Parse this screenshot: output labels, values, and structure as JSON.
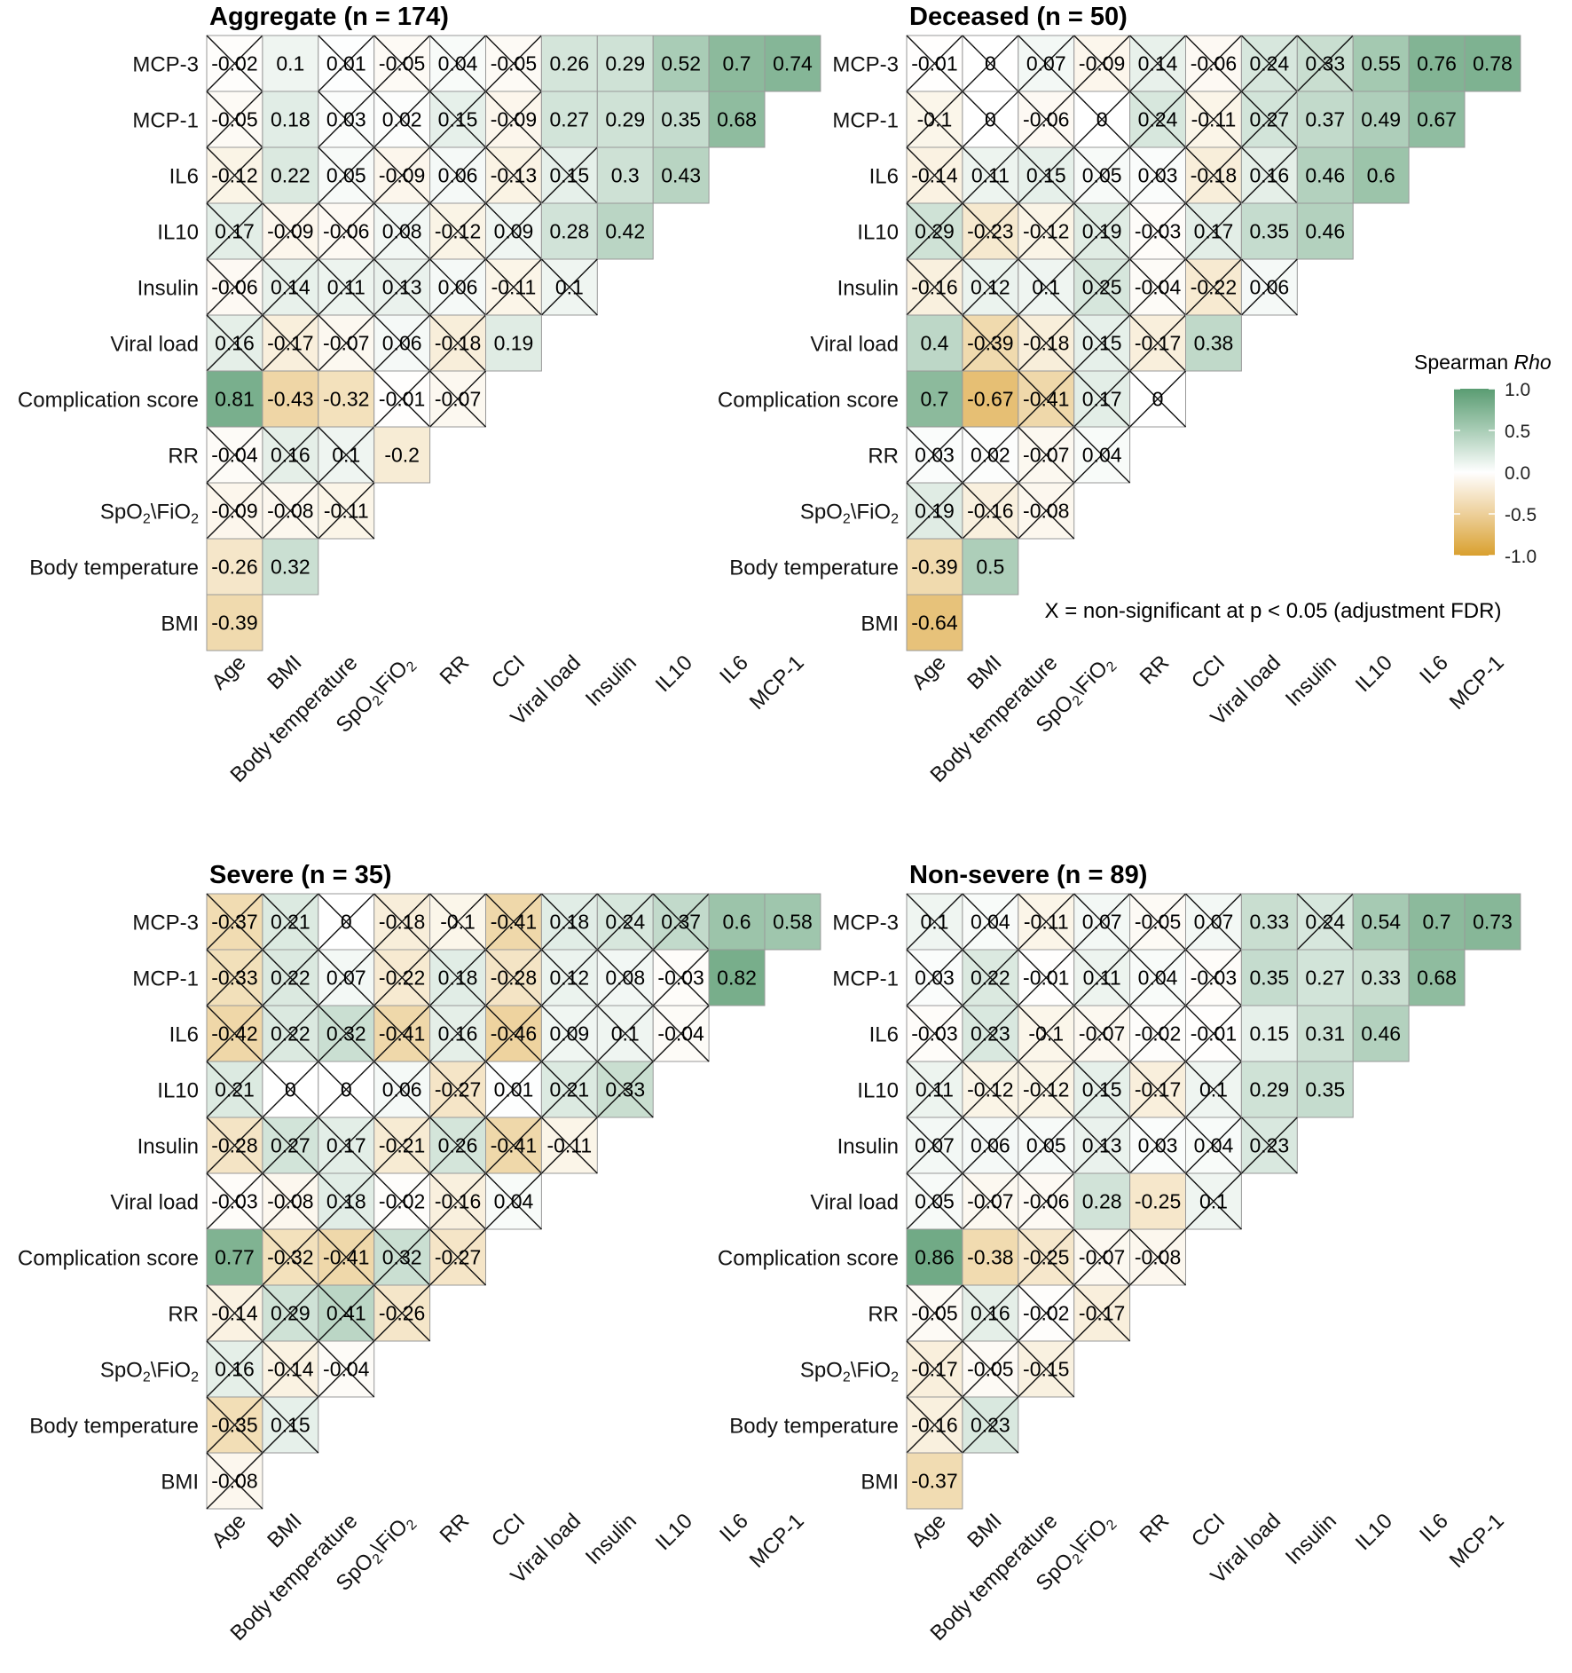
{
  "chart_data": [
    {
      "type": "heatmap",
      "title": "Aggregate (n = 174)",
      "rows": [
        "MCP-3",
        "MCP-1",
        "IL6",
        "IL10",
        "Insulin",
        "Viral load",
        "Complication score",
        "RR",
        "SpO2\\FiO2",
        "Body temperature",
        "BMI"
      ],
      "columns": [
        "Age",
        "BMI",
        "Body temperature",
        "SpO2\\FiO2",
        "RR",
        "CCI",
        "Viral load",
        "Insulin",
        "IL10",
        "IL6",
        "MCP-1"
      ],
      "values": [
        [
          -0.02,
          0.1,
          0.01,
          -0.05,
          0.04,
          -0.05,
          0.26,
          0.29,
          0.52,
          0.7,
          0.74
        ],
        [
          -0.05,
          0.18,
          0.03,
          0.02,
          0.15,
          -0.09,
          0.27,
          0.29,
          0.35,
          0.68
        ],
        [
          -0.12,
          0.22,
          0.05,
          -0.09,
          0.06,
          -0.13,
          0.15,
          0.3,
          0.43
        ],
        [
          0.17,
          -0.09,
          -0.06,
          0.08,
          -0.12,
          0.09,
          0.28,
          0.42
        ],
        [
          -0.06,
          0.14,
          0.11,
          0.13,
          0.06,
          -0.11,
          0.1
        ],
        [
          0.16,
          -0.17,
          -0.07,
          0.06,
          -0.18,
          0.19
        ],
        [
          0.81,
          -0.43,
          -0.32,
          -0.01,
          -0.07
        ],
        [
          -0.04,
          0.16,
          0.1,
          -0.2
        ],
        [
          -0.09,
          -0.08,
          -0.11
        ],
        [
          -0.26,
          0.32
        ],
        [
          -0.39
        ]
      ],
      "labels": [
        [
          "-0.02",
          "0.1",
          "0.01",
          "-0.05",
          "0.04",
          "-0.05",
          "0.26",
          "0.29",
          "0.52",
          "0.7",
          "0.74"
        ],
        [
          "-0.05",
          "0.18",
          "0.03",
          "0.02",
          "0.15",
          "-0.09",
          "0.27",
          "0.29",
          "0.35",
          "0.68"
        ],
        [
          "-0.12",
          "0.22",
          "0.05",
          "-0.09",
          "0.06",
          "-0.13",
          "0.15",
          "0.3",
          "0.43"
        ],
        [
          "0.17",
          "-0.09",
          "-0.06",
          "0.08",
          "-0.12",
          "0.09",
          "0.28",
          "0.42"
        ],
        [
          "-0.06",
          "0.14",
          "0.11",
          "0.13",
          "0.06",
          "-0.11",
          "0.1"
        ],
        [
          "0.16",
          "-0.17",
          "-0.07",
          "0.06",
          "-0.18",
          "0.19"
        ],
        [
          "0.81",
          "-0.43",
          "-0.32",
          "-0.01",
          "-0.07"
        ],
        [
          "-0.04",
          "0.16",
          "0.1",
          "-0.2"
        ],
        [
          "-0.09",
          "-0.08",
          "-0.11"
        ],
        [
          "-0.26",
          "0.32"
        ],
        [
          "-0.39"
        ]
      ],
      "nonsignificant": [
        [
          1,
          0,
          1,
          1,
          1,
          1,
          0,
          0,
          0,
          0,
          0
        ],
        [
          1,
          0,
          1,
          1,
          1,
          1,
          0,
          0,
          0,
          0
        ],
        [
          1,
          0,
          1,
          1,
          1,
          1,
          1,
          0,
          0
        ],
        [
          1,
          1,
          1,
          1,
          1,
          1,
          0,
          0
        ],
        [
          1,
          1,
          1,
          1,
          1,
          1,
          1
        ],
        [
          1,
          1,
          1,
          1,
          1,
          0
        ],
        [
          0,
          0,
          0,
          1,
          1
        ],
        [
          1,
          1,
          1,
          0
        ],
        [
          1,
          1,
          1
        ],
        [
          0,
          0
        ],
        [
          0
        ]
      ]
    },
    {
      "type": "heatmap",
      "title": "Deceased (n = 50)",
      "rows": [
        "MCP-3",
        "MCP-1",
        "IL6",
        "IL10",
        "Insulin",
        "Viral load",
        "Complication score",
        "RR",
        "SpO2\\FiO2",
        "Body temperature",
        "BMI"
      ],
      "columns": [
        "Age",
        "BMI",
        "Body temperature",
        "SpO2\\FiO2",
        "RR",
        "CCI",
        "Viral load",
        "Insulin",
        "IL10",
        "IL6",
        "MCP-1"
      ],
      "values": [
        [
          -0.01,
          0,
          0.07,
          -0.09,
          0.14,
          -0.06,
          0.24,
          0.33,
          0.55,
          0.76,
          0.78
        ],
        [
          -0.1,
          0,
          -0.06,
          0,
          0.24,
          -0.11,
          0.27,
          0.37,
          0.49,
          0.67
        ],
        [
          -0.14,
          0.11,
          0.15,
          0.05,
          0.03,
          -0.18,
          0.16,
          0.46,
          0.6
        ],
        [
          0.29,
          -0.23,
          -0.12,
          0.19,
          -0.03,
          0.17,
          0.35,
          0.46
        ],
        [
          -0.16,
          0.12,
          0.1,
          0.25,
          -0.04,
          -0.22,
          0.06
        ],
        [
          0.4,
          -0.39,
          -0.18,
          0.15,
          -0.17,
          0.38
        ],
        [
          0.7,
          -0.67,
          -0.41,
          0.17,
          0
        ],
        [
          0.03,
          0.02,
          -0.07,
          0.04
        ],
        [
          0.19,
          -0.16,
          -0.08
        ],
        [
          -0.39,
          0.5
        ],
        [
          -0.64
        ]
      ],
      "labels": [
        [
          "-0.01",
          "0",
          "0.07",
          "-0.09",
          "0.14",
          "-0.06",
          "0.24",
          "0.33",
          "0.55",
          "0.76",
          "0.78"
        ],
        [
          "-0.1",
          "0",
          "-0.06",
          "0",
          "0.24",
          "-0.11",
          "0.27",
          "0.37",
          "0.49",
          "0.67"
        ],
        [
          "-0.14",
          "0.11",
          "0.15",
          "0.05",
          "0.03",
          "-0.18",
          "0.16",
          "0.46",
          "0.6"
        ],
        [
          "0.29",
          "-0.23",
          "-0.12",
          "0.19",
          "-0.03",
          "0.17",
          "0.35",
          "0.46"
        ],
        [
          "-0.16",
          "0.12",
          "0.1",
          "0.25",
          "-0.04",
          "-0.22",
          "0.06"
        ],
        [
          "0.4",
          "-0.39",
          "-0.18",
          "0.15",
          "-0.17",
          "0.38"
        ],
        [
          "0.7",
          "-0.67",
          "-0.41",
          "0.17",
          "0"
        ],
        [
          "0.03",
          "0.02",
          "-0.07",
          "0.04"
        ],
        [
          "0.19",
          "-0.16",
          "-0.08"
        ],
        [
          "-0.39",
          "0.5"
        ],
        [
          "-0.64"
        ]
      ],
      "nonsignificant": [
        [
          1,
          1,
          1,
          1,
          1,
          1,
          1,
          1,
          0,
          0,
          0
        ],
        [
          1,
          1,
          1,
          1,
          1,
          1,
          1,
          0,
          0,
          0
        ],
        [
          1,
          1,
          1,
          1,
          1,
          1,
          1,
          0,
          0
        ],
        [
          1,
          1,
          1,
          1,
          1,
          1,
          0,
          0
        ],
        [
          1,
          1,
          1,
          1,
          1,
          1,
          1
        ],
        [
          0,
          1,
          1,
          1,
          1,
          0
        ],
        [
          0,
          0,
          1,
          1,
          1
        ],
        [
          1,
          1,
          1,
          1
        ],
        [
          1,
          1,
          1
        ],
        [
          0,
          0
        ],
        [
          0
        ]
      ]
    },
    {
      "type": "heatmap",
      "title": "Severe (n = 35)",
      "rows": [
        "MCP-3",
        "MCP-1",
        "IL6",
        "IL10",
        "Insulin",
        "Viral load",
        "Complication score",
        "RR",
        "SpO2\\FiO2",
        "Body temperature",
        "BMI"
      ],
      "columns": [
        "Age",
        "BMI",
        "Body temperature",
        "SpO2\\FiO2",
        "RR",
        "CCI",
        "Viral load",
        "Insulin",
        "IL10",
        "IL6",
        "MCP-1"
      ],
      "values": [
        [
          -0.37,
          0.21,
          0,
          -0.18,
          -0.1,
          -0.41,
          0.18,
          0.24,
          0.37,
          0.6,
          0.58
        ],
        [
          -0.33,
          0.22,
          0.07,
          -0.22,
          0.18,
          -0.28,
          0.12,
          0.08,
          -0.03,
          0.82
        ],
        [
          -0.42,
          0.22,
          0.32,
          -0.41,
          0.16,
          -0.46,
          0.09,
          0.1,
          -0.04
        ],
        [
          0.21,
          0,
          0,
          0.06,
          -0.27,
          0.01,
          0.21,
          0.33
        ],
        [
          -0.28,
          0.27,
          0.17,
          -0.21,
          0.26,
          -0.41,
          -0.11
        ],
        [
          -0.03,
          -0.08,
          0.18,
          -0.02,
          -0.16,
          0.04
        ],
        [
          0.77,
          -0.32,
          -0.41,
          0.32,
          -0.27
        ],
        [
          -0.14,
          0.29,
          0.41,
          -0.26
        ],
        [
          0.16,
          -0.14,
          -0.04
        ],
        [
          -0.35,
          0.15
        ],
        [
          -0.08
        ]
      ],
      "labels": [
        [
          "-0.37",
          "0.21",
          "0",
          "-0.18",
          "-0.1",
          "-0.41",
          "0.18",
          "0.24",
          "0.37",
          "0.6",
          "0.58"
        ],
        [
          "-0.33",
          "0.22",
          "0.07",
          "-0.22",
          "0.18",
          "-0.28",
          "0.12",
          "0.08",
          "-0.03",
          "0.82"
        ],
        [
          "-0.42",
          "0.22",
          "0.32",
          "-0.41",
          "0.16",
          "-0.46",
          "0.09",
          "0.1",
          "-0.04"
        ],
        [
          "0.21",
          "0",
          "0",
          "0.06",
          "-0.27",
          "0.01",
          "0.21",
          "0.33"
        ],
        [
          "-0.28",
          "0.27",
          "0.17",
          "-0.21",
          "0.26",
          "-0.41",
          "-0.11"
        ],
        [
          "-0.03",
          "-0.08",
          "0.18",
          "-0.02",
          "-0.16",
          "0.04"
        ],
        [
          "0.77",
          "-0.32",
          "-0.41",
          "0.32",
          "-0.27"
        ],
        [
          "-0.14",
          "0.29",
          "0.41",
          "-0.26"
        ],
        [
          "0.16",
          "-0.14",
          "-0.04"
        ],
        [
          "-0.35",
          "0.15"
        ],
        [
          "-0.08"
        ]
      ],
      "nonsignificant": [
        [
          1,
          1,
          1,
          1,
          1,
          1,
          1,
          1,
          1,
          0,
          0
        ],
        [
          1,
          1,
          1,
          1,
          1,
          1,
          1,
          1,
          1,
          0
        ],
        [
          1,
          1,
          1,
          1,
          1,
          1,
          1,
          1,
          1
        ],
        [
          1,
          1,
          1,
          1,
          1,
          1,
          1,
          1
        ],
        [
          1,
          1,
          1,
          1,
          1,
          1,
          1
        ],
        [
          1,
          1,
          1,
          1,
          1,
          1
        ],
        [
          0,
          1,
          1,
          1,
          1
        ],
        [
          1,
          1,
          1,
          1
        ],
        [
          1,
          1,
          1
        ],
        [
          1,
          1
        ],
        [
          1
        ]
      ]
    },
    {
      "type": "heatmap",
      "title": "Non-severe (n = 89)",
      "rows": [
        "MCP-3",
        "MCP-1",
        "IL6",
        "IL10",
        "Insulin",
        "Viral load",
        "Complication score",
        "RR",
        "SpO2\\FiO2",
        "Body temperature",
        "BMI"
      ],
      "columns": [
        "Age",
        "BMI",
        "Body temperature",
        "SpO2\\FiO2",
        "RR",
        "CCI",
        "Viral load",
        "Insulin",
        "IL10",
        "IL6",
        "MCP-1"
      ],
      "values": [
        [
          0.1,
          0.04,
          -0.11,
          0.07,
          -0.05,
          0.07,
          0.33,
          0.24,
          0.54,
          0.7,
          0.73
        ],
        [
          0.03,
          0.22,
          -0.01,
          0.11,
          0.04,
          -0.03,
          0.35,
          0.27,
          0.33,
          0.68
        ],
        [
          -0.03,
          0.23,
          -0.1,
          -0.07,
          -0.02,
          -0.01,
          0.15,
          0.31,
          0.46
        ],
        [
          0.11,
          -0.12,
          -0.12,
          0.15,
          -0.17,
          0.1,
          0.29,
          0.35
        ],
        [
          0.07,
          0.06,
          0.05,
          0.13,
          0.03,
          0.04,
          0.23
        ],
        [
          0.05,
          -0.07,
          -0.06,
          0.28,
          -0.25,
          0.1
        ],
        [
          0.86,
          -0.38,
          -0.25,
          -0.07,
          -0.08
        ],
        [
          -0.05,
          0.16,
          -0.02,
          -0.17
        ],
        [
          -0.17,
          -0.05,
          -0.15
        ],
        [
          -0.16,
          0.23
        ],
        [
          -0.37
        ]
      ],
      "labels": [
        [
          "0.1",
          "0.04",
          "-0.11",
          "0.07",
          "-0.05",
          "0.07",
          "0.33",
          "0.24",
          "0.54",
          "0.7",
          "0.73"
        ],
        [
          "0.03",
          "0.22",
          "-0.01",
          "0.11",
          "0.04",
          "-0.03",
          "0.35",
          "0.27",
          "0.33",
          "0.68"
        ],
        [
          "-0.03",
          "0.23",
          "-0.1",
          "-0.07",
          "-0.02",
          "-0.01",
          "0.15",
          "0.31",
          "0.46"
        ],
        [
          "0.11",
          "-0.12",
          "-0.12",
          "0.15",
          "-0.17",
          "0.1",
          "0.29",
          "0.35"
        ],
        [
          "0.07",
          "0.06",
          "0.05",
          "0.13",
          "0.03",
          "0.04",
          "0.23"
        ],
        [
          "0.05",
          "-0.07",
          "-0.06",
          "0.28",
          "-0.25",
          "0.1"
        ],
        [
          "0.86",
          "-0.38",
          "-0.25",
          "-0.07",
          "-0.08"
        ],
        [
          "-0.05",
          "0.16",
          "-0.02",
          "-0.17"
        ],
        [
          "-0.17",
          "-0.05",
          "-0.15"
        ],
        [
          "-0.16",
          "0.23"
        ],
        [
          "-0.37"
        ]
      ],
      "nonsignificant": [
        [
          1,
          1,
          1,
          1,
          1,
          1,
          0,
          1,
          0,
          0,
          0
        ],
        [
          1,
          1,
          1,
          1,
          1,
          1,
          0,
          0,
          0,
          0
        ],
        [
          1,
          1,
          1,
          1,
          1,
          1,
          0,
          0,
          0
        ],
        [
          1,
          1,
          1,
          1,
          1,
          1,
          0,
          0
        ],
        [
          1,
          1,
          1,
          1,
          1,
          1,
          1
        ],
        [
          1,
          1,
          1,
          0,
          0,
          1
        ],
        [
          0,
          0,
          1,
          1,
          1
        ],
        [
          1,
          1,
          1,
          1
        ],
        [
          1,
          1,
          1
        ],
        [
          1,
          1
        ],
        [
          0
        ]
      ]
    }
  ],
  "legend": {
    "title_prefix": "Spearman",
    "title_italic": "Rho",
    "ticks": [
      "1.0",
      "0.5",
      "0.0",
      "-0.5",
      "-1.0"
    ],
    "range": [
      -1,
      1
    ]
  },
  "note": "X = non-significant at p < 0.05 (adjustment FDR)",
  "colors": {
    "positive": "#5a9c72",
    "negative": "#d9a02f",
    "neutral": "#ffffff",
    "grid": "#999999",
    "cross": "#111111",
    "text": "#000000"
  }
}
